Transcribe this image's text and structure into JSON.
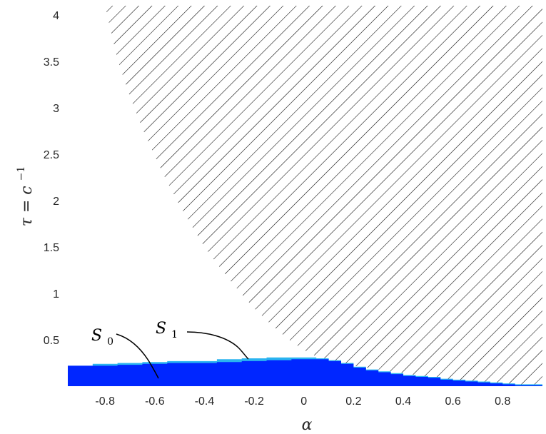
{
  "chart_data": {
    "type": "area",
    "xlabel": "α",
    "ylabel": "τ = c",
    "ylabel_superscript": "−1",
    "xlim": [
      -0.95,
      0.96
    ],
    "ylim": [
      0,
      4.1
    ],
    "x_ticks": [
      "-0.8",
      "-0.6",
      "-0.4",
      "-0.2",
      "0",
      "0.2",
      "0.4",
      "0.6",
      "0.8"
    ],
    "y_ticks": [
      "0.5",
      "1",
      "1.5",
      "2",
      "2.5",
      "3",
      "3.5",
      "4"
    ],
    "colors": {
      "S0": "#0026ff",
      "S1": "#2ab4f0",
      "hatch": "#000000"
    },
    "hatched_region": {
      "x": [
        -0.8,
        -0.75,
        -0.7,
        -0.65,
        -0.6,
        -0.55,
        -0.5,
        -0.45,
        -0.4,
        -0.35,
        -0.3,
        -0.25,
        -0.2,
        -0.15,
        -0.1,
        -0.05,
        0.0,
        0.05,
        0.1,
        0.15,
        0.2,
        0.25,
        0.3,
        0.35,
        0.4,
        0.45,
        0.5,
        0.55,
        0.6,
        0.65,
        0.7,
        0.75,
        0.8,
        0.85,
        0.9,
        0.96
      ],
      "y_lower": [
        4.1,
        3.52,
        3.12,
        2.78,
        2.48,
        2.2,
        1.95,
        1.72,
        1.5,
        1.32,
        1.15,
        0.99,
        0.84,
        0.71,
        0.59,
        0.48,
        0.39,
        0.32,
        0.28,
        0.25,
        0.22,
        0.2,
        0.18,
        0.16,
        0.14,
        0.12,
        0.1,
        0.08,
        0.06,
        0.05,
        0.04,
        0.03,
        0.02,
        0.01,
        0.005,
        0.0
      ]
    },
    "series": [
      {
        "name": "S",
        "subscript": "0",
        "x": [
          -0.95,
          -0.85,
          -0.75,
          -0.65,
          -0.55,
          -0.45,
          -0.35,
          -0.25,
          -0.15,
          -0.05,
          0.05,
          0.1,
          0.15,
          0.2,
          0.25,
          0.3,
          0.35,
          0.4,
          0.45,
          0.5,
          0.55,
          0.6,
          0.65,
          0.7,
          0.75,
          0.8,
          0.85,
          0.96
        ],
        "y": [
          0.22,
          0.22,
          0.23,
          0.24,
          0.25,
          0.25,
          0.26,
          0.27,
          0.28,
          0.29,
          0.29,
          0.27,
          0.24,
          0.2,
          0.17,
          0.15,
          0.13,
          0.11,
          0.1,
          0.09,
          0.07,
          0.06,
          0.05,
          0.04,
          0.03,
          0.02,
          0.01,
          0.01
        ]
      },
      {
        "name": "S",
        "subscript": "1",
        "x": [
          -0.95,
          -0.85,
          -0.75,
          -0.65,
          -0.55,
          -0.45,
          -0.35,
          -0.25,
          -0.15,
          -0.05,
          0.05,
          0.1,
          0.15,
          0.2,
          0.25,
          0.3,
          0.35,
          0.4,
          0.45,
          0.5,
          0.55,
          0.6,
          0.65,
          0.7,
          0.75,
          0.8,
          0.85,
          0.96
        ],
        "y": [
          0.22,
          0.24,
          0.25,
          0.26,
          0.27,
          0.27,
          0.29,
          0.3,
          0.31,
          0.31,
          0.3,
          0.28,
          0.25,
          0.21,
          0.18,
          0.16,
          0.14,
          0.12,
          0.11,
          0.1,
          0.08,
          0.07,
          0.06,
          0.05,
          0.04,
          0.03,
          0.02,
          0.01
        ]
      }
    ]
  }
}
